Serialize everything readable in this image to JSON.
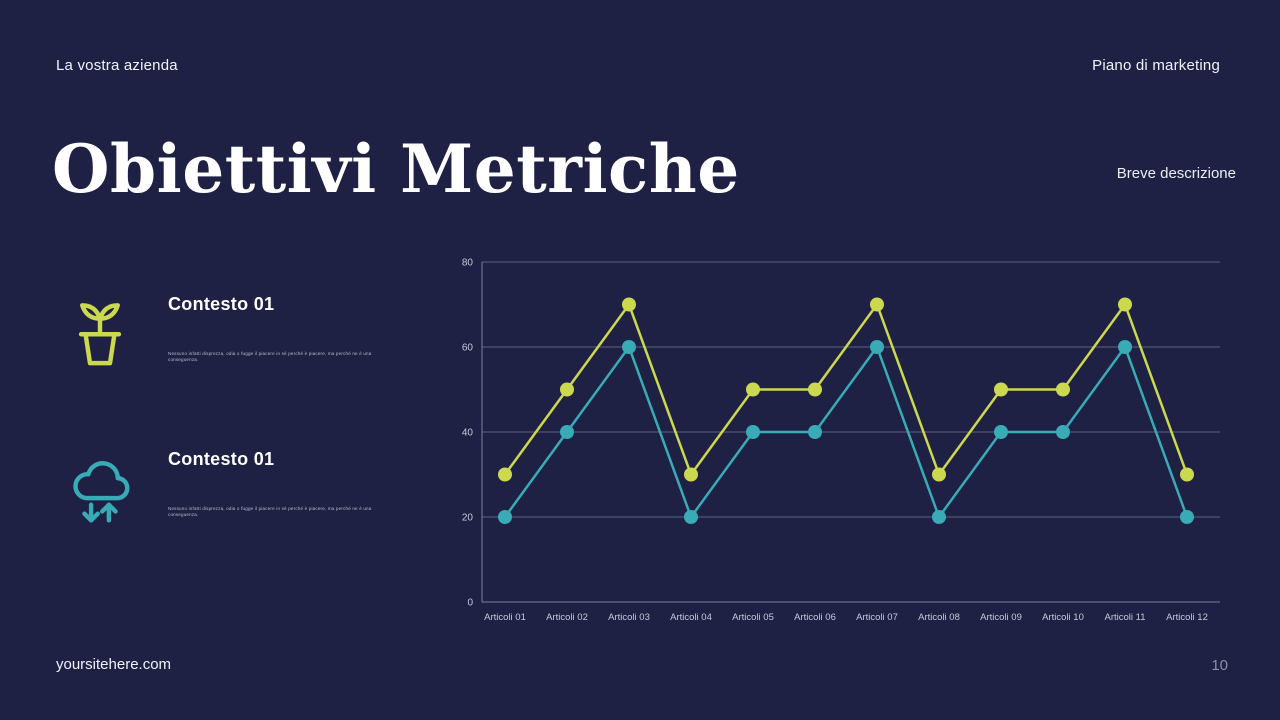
{
  "header": {
    "left": "La vostra azienda",
    "right": "Piano di marketing"
  },
  "title": "Obiettivi Metriche",
  "description_label": "Breve descrizione",
  "contexts": [
    {
      "heading": "Contesto 01",
      "body": "Nessuno infatti disprezza, odia o fugge il piacere in sé perché è piacere, ma perché ne è una conseguenza.",
      "icon": "plant-icon",
      "color": "#ccd94e"
    },
    {
      "heading": "Contesto 01",
      "body": "Nessuno infatti disprezza, odia o fugge il piacere in sé perché è piacere, ma perché ne è una conseguenza.",
      "icon": "cloud-sync-icon",
      "color": "#39abb7"
    }
  ],
  "footer": {
    "site": "yoursitehere.com",
    "page": "10"
  },
  "colors": {
    "background": "#1e2143",
    "accent_green": "#ccd94e",
    "accent_teal": "#39abb7",
    "grid": "#aab0c6",
    "chart_text": "#c6cadd"
  },
  "chart_data": {
    "type": "line",
    "title": "",
    "xlabel": "",
    "ylabel": "",
    "categories": [
      "Articoli 01",
      "Articoli 02",
      "Articoli 03",
      "Articoli 04",
      "Articoli 05",
      "Articoli 06",
      "Articoli 07",
      "Articoli 08",
      "Articoli 09",
      "Articoli 10",
      "Articoli 11",
      "Articoli 12"
    ],
    "series": [
      {
        "name": "serie-verde",
        "color": "#ccd94e",
        "values": [
          30,
          50,
          70,
          30,
          50,
          50,
          70,
          30,
          50,
          50,
          70,
          30
        ]
      },
      {
        "name": "serie-teal",
        "color": "#39abb7",
        "values": [
          20,
          40,
          60,
          20,
          40,
          40,
          60,
          20,
          40,
          40,
          60,
          20
        ]
      }
    ],
    "ylim": [
      0,
      80
    ],
    "yticks": [
      0,
      20,
      40,
      60,
      80
    ],
    "grid": true,
    "legend": "none",
    "marker_radius": 7
  }
}
